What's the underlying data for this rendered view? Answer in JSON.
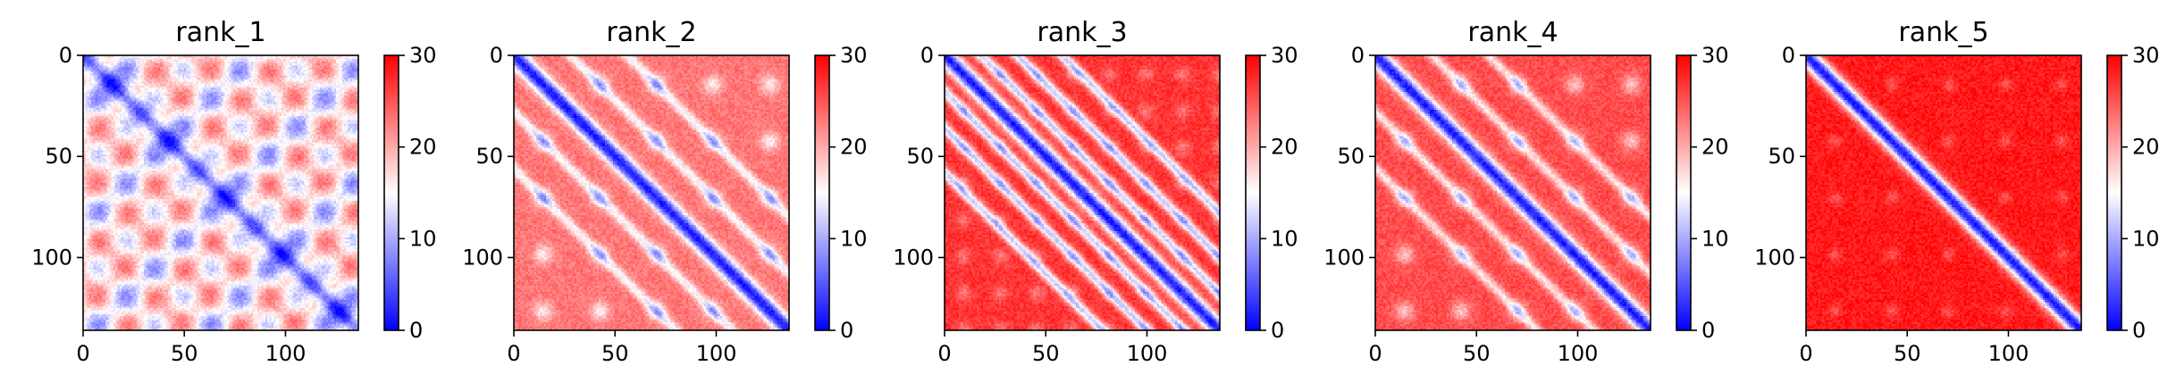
{
  "chart_data": [
    {
      "type": "heatmap",
      "title": "rank_1",
      "matrix_size": 136,
      "diagonal_stripes": {
        "offsets": [],
        "strength": 0
      },
      "pattern": "blobs",
      "base_level": 16.5,
      "xticks": [
        "0",
        "50",
        "100"
      ],
      "yticks": [
        "0",
        "50",
        "100"
      ],
      "xlim": [
        0,
        136
      ],
      "ylim": [
        136,
        0
      ],
      "colorbar": {
        "min": 0,
        "max": 30,
        "ticks": [
          "0",
          "10",
          "20",
          "30"
        ],
        "colors": [
          "#0000ff",
          "#ffffff",
          "#ff0000"
        ]
      }
    },
    {
      "type": "heatmap",
      "title": "rank_2",
      "matrix_size": 136,
      "diagonal_stripes": {
        "offsets": [
          28,
          56
        ],
        "strength": 0.55
      },
      "pattern": "light-blobs",
      "base_level": 23,
      "xticks": [
        "0",
        "50",
        "100"
      ],
      "yticks": [
        "0",
        "50",
        "100"
      ],
      "xlim": [
        0,
        136
      ],
      "ylim": [
        136,
        0
      ],
      "colorbar": {
        "min": 0,
        "max": 30,
        "ticks": [
          "0",
          "10",
          "20",
          "30"
        ],
        "colors": [
          "#0000ff",
          "#ffffff",
          "#ff0000"
        ]
      }
    },
    {
      "type": "heatmap",
      "title": "rank_3",
      "matrix_size": 136,
      "diagonal_stripes": {
        "offsets": [
          18,
          36,
          58
        ],
        "strength": 0.8
      },
      "pattern": "stripes",
      "base_level": 27,
      "xticks": [
        "0",
        "50",
        "100"
      ],
      "yticks": [
        "0",
        "50",
        "100"
      ],
      "xlim": [
        0,
        136
      ],
      "ylim": [
        136,
        0
      ],
      "colorbar": {
        "min": 0,
        "max": 30,
        "ticks": [
          "0",
          "10",
          "20",
          "30"
        ],
        "colors": [
          "#0000ff",
          "#ffffff",
          "#ff0000"
        ]
      }
    },
    {
      "type": "heatmap",
      "title": "rank_4",
      "matrix_size": 136,
      "diagonal_stripes": {
        "offsets": [
          28,
          56
        ],
        "strength": 0.5
      },
      "pattern": "light-blobs",
      "base_level": 25.5,
      "xticks": [
        "0",
        "50",
        "100"
      ],
      "yticks": [
        "0",
        "50",
        "100"
      ],
      "xlim": [
        0,
        136
      ],
      "ylim": [
        136,
        0
      ],
      "colorbar": {
        "min": 0,
        "max": 30,
        "ticks": [
          "0",
          "10",
          "20",
          "30"
        ],
        "colors": [
          "#0000ff",
          "#ffffff",
          "#ff0000"
        ]
      }
    },
    {
      "type": "heatmap",
      "title": "rank_5",
      "matrix_size": 136,
      "diagonal_stripes": {
        "offsets": [],
        "strength": 0
      },
      "pattern": "grid",
      "base_level": 28.5,
      "xticks": [
        "0",
        "50",
        "100"
      ],
      "yticks": [
        "0",
        "50",
        "100"
      ],
      "xlim": [
        0,
        136
      ],
      "ylim": [
        136,
        0
      ],
      "colorbar": {
        "min": 0,
        "max": 30,
        "ticks": [
          "0",
          "10",
          "20",
          "30"
        ],
        "colors": [
          "#0000ff",
          "#ffffff",
          "#ff0000"
        ]
      }
    }
  ]
}
